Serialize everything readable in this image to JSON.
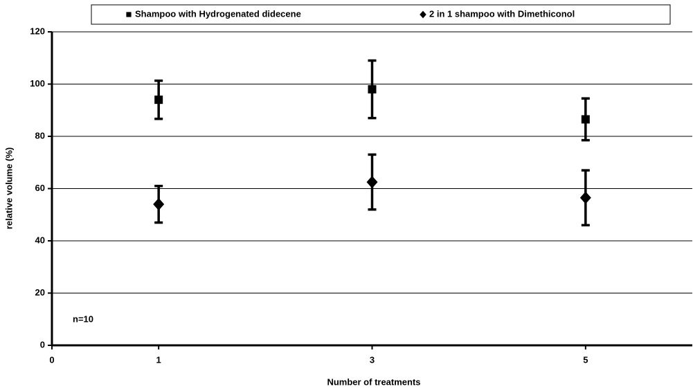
{
  "chart_data": {
    "type": "scatter",
    "xlabel": "Number of treatments",
    "ylabel": "relative volume (%)",
    "annotation": "n=10",
    "xlim": [
      0,
      6
    ],
    "xticks": [
      0,
      1,
      3,
      5
    ],
    "ylim": [
      0,
      120
    ],
    "yticks": [
      0,
      20,
      40,
      60,
      80,
      100,
      120
    ],
    "grid": true,
    "legend": "top",
    "series": [
      {
        "name": "Shampoo with Hydrogenated didecene",
        "color": "#000000",
        "marker": "square",
        "x": [
          1,
          3,
          5
        ],
        "values": [
          94,
          98,
          86.5
        ],
        "errors": [
          7.3,
          11,
          8
        ]
      },
      {
        "name": "2 in 1 shampoo with Dimethiconol",
        "color": "#000000",
        "marker": "diamond",
        "x": [
          1,
          3,
          5
        ],
        "values": [
          54,
          62.5,
          56.5
        ],
        "errors": [
          7,
          10.5,
          10.5
        ]
      }
    ]
  }
}
